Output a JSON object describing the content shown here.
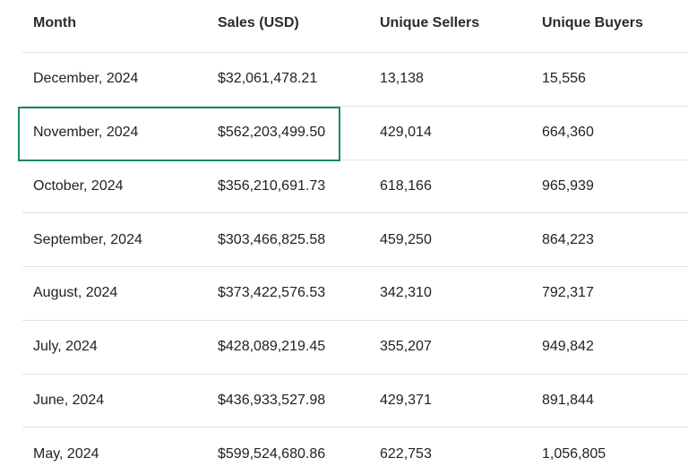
{
  "table": {
    "headers": {
      "month": "Month",
      "sales": "Sales (USD)",
      "sellers": "Unique Sellers",
      "buyers": "Unique Buyers"
    },
    "rows": [
      {
        "month": "December, 2024",
        "sales": "$32,061,478.21",
        "sellers": "13,138",
        "buyers": "15,556"
      },
      {
        "month": "November, 2024",
        "sales": "$562,203,499.50",
        "sellers": "429,014",
        "buyers": "664,360"
      },
      {
        "month": "October, 2024",
        "sales": "$356,210,691.73",
        "sellers": "618,166",
        "buyers": "965,939"
      },
      {
        "month": "September, 2024",
        "sales": "$303,466,825.58",
        "sellers": "459,250",
        "buyers": "864,223"
      },
      {
        "month": "August, 2024",
        "sales": "$373,422,576.53",
        "sellers": "342,310",
        "buyers": "792,317"
      },
      {
        "month": "July, 2024",
        "sales": "$428,089,219.45",
        "sellers": "355,207",
        "buyers": "949,842"
      },
      {
        "month": "June, 2024",
        "sales": "$436,933,527.98",
        "sellers": "429,371",
        "buyers": "891,844"
      },
      {
        "month": "May, 2024",
        "sales": "$599,524,680.86",
        "sellers": "622,753",
        "buyers": "1,056,805"
      }
    ],
    "highlighted_row_index": 1
  },
  "colors": {
    "highlight_border": "#1b8a5a",
    "row_divider": "#e2e2e2",
    "text": "#222222"
  }
}
